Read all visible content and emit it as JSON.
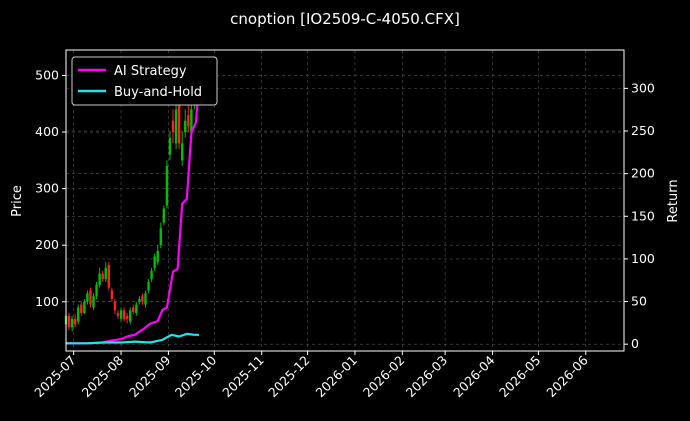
{
  "chart_data": {
    "type": "line",
    "title": "cnoption [IO2509-C-4050.CFX]",
    "ylabel_left": "Price",
    "ylabel_right": "Return",
    "xlim": [
      "2025-06-26",
      "2026-06-26"
    ],
    "ylim_left": [
      13,
      545
    ],
    "ylim_right": [
      -8,
      345
    ],
    "left_ticks": [
      100,
      200,
      300,
      400,
      500
    ],
    "right_ticks": [
      0,
      50,
      100,
      150,
      200,
      250,
      300
    ],
    "x_ticks": [
      "2025-07",
      "2025-08",
      "2025-09",
      "2025-10",
      "2025-11",
      "2025-12",
      "2026-01",
      "2026-02",
      "2026-03",
      "2026-04",
      "2026-05",
      "2026-06"
    ],
    "grid": true,
    "legend_position": "top-left",
    "colors": {
      "background": "#000000",
      "up_candle": "#00c000",
      "down_candle": "#ff2020",
      "ai_strategy": "#ff00ff",
      "buy_and_hold": "#22e4e8",
      "grid": "#555555"
    },
    "series": [
      {
        "name": "AI Strategy",
        "axis": "right",
        "x": [
          "2025-06-26",
          "2025-07-10",
          "2025-07-20",
          "2025-07-25",
          "2025-08-01",
          "2025-08-05",
          "2025-08-10",
          "2025-08-15",
          "2025-08-20",
          "2025-08-25",
          "2025-08-28",
          "2025-08-31",
          "2025-09-04",
          "2025-09-07",
          "2025-09-10",
          "2025-09-13",
          "2025-09-16",
          "2025-09-19",
          "2025-09-21"
        ],
        "values": [
          1,
          1,
          2,
          4,
          6,
          9,
          11,
          17,
          24,
          27,
          40,
          43,
          85,
          88,
          165,
          170,
          248,
          260,
          305
        ]
      },
      {
        "name": "Buy-and-Hold",
        "axis": "right",
        "x": [
          "2025-06-26",
          "2025-07-10",
          "2025-07-20",
          "2025-08-01",
          "2025-08-10",
          "2025-08-20",
          "2025-08-28",
          "2025-09-03",
          "2025-09-08",
          "2025-09-13",
          "2025-09-18",
          "2025-09-21"
        ],
        "values": [
          1,
          1,
          2,
          2,
          3,
          2,
          5,
          11,
          9,
          12,
          11,
          11
        ]
      }
    ],
    "candles": {
      "axis": "left",
      "x": [
        "2025-06-26",
        "2025-06-28",
        "2025-06-30",
        "2025-07-02",
        "2025-07-04",
        "2025-07-06",
        "2025-07-08",
        "2025-07-10",
        "2025-07-12",
        "2025-07-14",
        "2025-07-16",
        "2025-07-18",
        "2025-07-20",
        "2025-07-22",
        "2025-07-24",
        "2025-07-26",
        "2025-07-28",
        "2025-07-30",
        "2025-08-01",
        "2025-08-03",
        "2025-08-05",
        "2025-08-07",
        "2025-08-09",
        "2025-08-11",
        "2025-08-13",
        "2025-08-15",
        "2025-08-17",
        "2025-08-19",
        "2025-08-21",
        "2025-08-23",
        "2025-08-25",
        "2025-08-27",
        "2025-08-29",
        "2025-08-31",
        "2025-09-02",
        "2025-09-04",
        "2025-09-06",
        "2025-09-08",
        "2025-09-10",
        "2025-09-12",
        "2025-09-14",
        "2025-09-16",
        "2025-09-18",
        "2025-09-20"
      ],
      "open": [
        60,
        75,
        55,
        70,
        65,
        95,
        80,
        100,
        120,
        90,
        110,
        130,
        150,
        140,
        165,
        120,
        100,
        80,
        70,
        85,
        75,
        65,
        90,
        80,
        100,
        110,
        95,
        120,
        140,
        160,
        170,
        200,
        240,
        270,
        360,
        420,
        380,
        460,
        350,
        400,
        430,
        400,
        450,
        470
      ],
      "close": [
        75,
        55,
        70,
        60,
        90,
        80,
        100,
        115,
        95,
        110,
        130,
        150,
        140,
        160,
        125,
        105,
        85,
        75,
        85,
        70,
        70,
        85,
        82,
        95,
        105,
        100,
        115,
        135,
        155,
        180,
        190,
        230,
        265,
        340,
        390,
        400,
        440,
        380,
        380,
        420,
        410,
        440,
        460,
        500
      ],
      "high": [
        85,
        80,
        75,
        78,
        95,
        100,
        105,
        120,
        125,
        115,
        135,
        160,
        155,
        170,
        170,
        125,
        105,
        85,
        90,
        90,
        80,
        90,
        95,
        100,
        110,
        115,
        120,
        140,
        160,
        185,
        200,
        240,
        270,
        350,
        400,
        440,
        450,
        470,
        400,
        440,
        450,
        460,
        480,
        520
      ],
      "low": [
        45,
        50,
        48,
        55,
        60,
        75,
        78,
        95,
        90,
        85,
        105,
        125,
        135,
        135,
        120,
        100,
        78,
        70,
        65,
        65,
        62,
        60,
        78,
        75,
        95,
        95,
        90,
        115,
        135,
        155,
        165,
        195,
        235,
        265,
        350,
        380,
        370,
        370,
        340,
        390,
        400,
        390,
        440,
        460
      ]
    }
  }
}
